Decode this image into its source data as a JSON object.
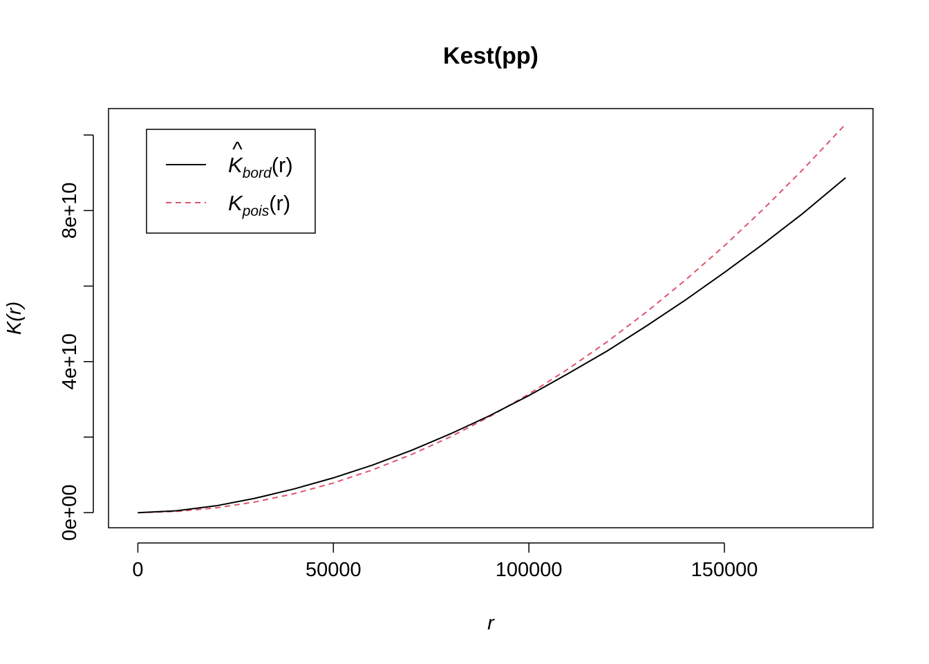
{
  "chart_data": {
    "type": "line",
    "title": "Kest(pp)",
    "xlabel": "r",
    "ylabel": "K(r)",
    "xlim": [
      -7500,
      188000
    ],
    "ylim": [
      -4000000000,
      107000000000
    ],
    "x_ticks": [
      0,
      50000,
      100000,
      150000
    ],
    "x_tick_labels": [
      "0",
      "50000",
      "100000",
      "150000"
    ],
    "y_ticks": [
      0,
      20000000000,
      40000000000,
      60000000000,
      80000000000,
      100000000000
    ],
    "y_tick_labels": [
      "0e+00",
      "",
      "4e+10",
      "",
      "8e+10",
      ""
    ],
    "grid": false,
    "legend_position": "top-left",
    "series": [
      {
        "name_main": "K",
        "name_hat": "^",
        "name_sub": "bord",
        "name_tail": "(r)",
        "color": "#000000",
        "dash": "solid",
        "x": [
          0,
          10000,
          20000,
          30000,
          40000,
          50000,
          60000,
          70000,
          80000,
          90000,
          100000,
          110000,
          120000,
          130000,
          140000,
          150000,
          160000,
          170000,
          181000
        ],
        "values": [
          0,
          500000000,
          1800000000,
          3800000000,
          6300000000,
          9200000000,
          12600000000,
          16500000000,
          20900000000,
          25700000000,
          31000000000,
          36800000000,
          42800000000,
          49400000000,
          56300000000,
          63600000000,
          71200000000,
          79200000000,
          88700000000
        ]
      },
      {
        "name_main": "K",
        "name_hat": "",
        "name_sub": "pois",
        "name_tail": "(r)",
        "color": "#DF536B",
        "dash": "dashed",
        "x": [
          0,
          10000,
          20000,
          30000,
          40000,
          50000,
          60000,
          70000,
          80000,
          90000,
          100000,
          110000,
          120000,
          130000,
          140000,
          150000,
          160000,
          170000,
          181000
        ],
        "values": [
          0,
          314000000,
          1257000000,
          2827000000,
          5027000000,
          7854000000,
          11310000000,
          15394000000,
          20106000000,
          25447000000,
          31416000000,
          38013000000,
          45239000000,
          53093000000,
          61575000000,
          70686000000,
          80425000000,
          90792000000,
          102900000000
        ]
      }
    ]
  }
}
